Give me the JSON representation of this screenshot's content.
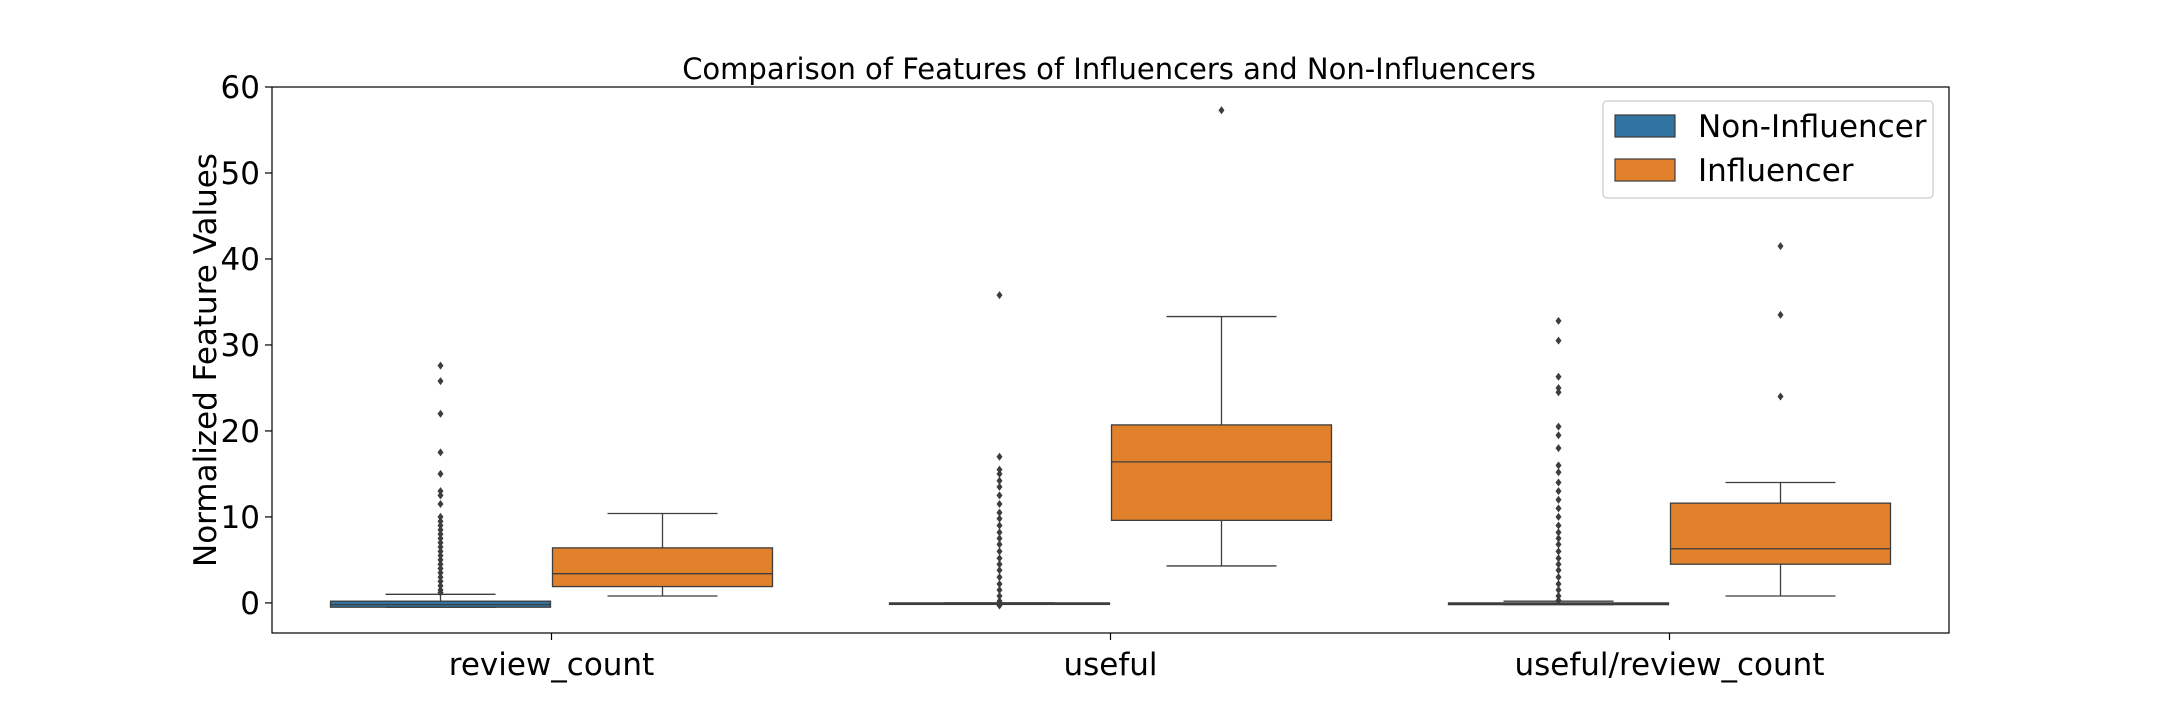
{
  "chart_data": {
    "type": "boxplot",
    "title": "Comparison of Features of Influencers and Non-Influencers",
    "xlabel": "",
    "ylabel": "Normalized Feature Values",
    "ylim": [
      -3.5,
      60
    ],
    "yticks": [
      0,
      10,
      20,
      30,
      40,
      50,
      60
    ],
    "categories": [
      "review_count",
      "useful",
      "useful/review_count"
    ],
    "legend_position": "upper-right",
    "grid": false,
    "series": [
      {
        "name": "Non-Influencer",
        "color": "#3274a1",
        "boxes": [
          {
            "whislo": -0.5,
            "q1": -0.5,
            "med": -0.2,
            "q3": 0.2,
            "whishi": 1.0,
            "fliers": [
              1.2,
              1.5,
              2,
              2.5,
              3,
              3.5,
              4,
              4.5,
              5,
              5.5,
              6,
              6.5,
              7,
              7.5,
              8,
              8.5,
              9,
              9.5,
              10,
              11.5,
              12.5,
              13,
              15,
              17.5,
              22,
              25.8,
              27.6
            ]
          },
          {
            "whislo": -0.1,
            "q1": -0.1,
            "med": -0.05,
            "q3": 0.0,
            "whishi": 0.0,
            "fliers": [
              0.2,
              0.8,
              1.5,
              2.2,
              3,
              3.8,
              4.5,
              5.2,
              6,
              6.8,
              7.5,
              8.2,
              9,
              9.8,
              10.5,
              11.5,
              12.5,
              13.5,
              14.2,
              15,
              15.5,
              17,
              35.8,
              -0.3
            ]
          },
          {
            "whislo": -0.2,
            "q1": -0.2,
            "med": -0.1,
            "q3": 0.0,
            "whishi": 0.2,
            "fliers": [
              0.3,
              0.8,
              1.5,
              2.2,
              3,
              3.8,
              4.5,
              5.2,
              6,
              6.8,
              7.5,
              8.2,
              9,
              10,
              11,
              12,
              13,
              14,
              15.2,
              16,
              18,
              19.5,
              20.5,
              24.5,
              25,
              26.3,
              30.5,
              32.8
            ]
          }
        ]
      },
      {
        "name": "Influencer",
        "color": "#e1812c",
        "boxes": [
          {
            "whislo": 0.8,
            "q1": 1.9,
            "med": 3.4,
            "q3": 6.4,
            "whishi": 10.4,
            "fliers": []
          },
          {
            "whislo": 4.3,
            "q1": 9.6,
            "med": 16.4,
            "q3": 20.7,
            "whishi": 33.3,
            "fliers": [
              57.3
            ]
          },
          {
            "whislo": 0.8,
            "q1": 4.5,
            "med": 6.3,
            "q3": 11.6,
            "whishi": 14.0,
            "fliers": [
              24.0,
              33.5,
              41.5
            ]
          }
        ]
      }
    ]
  }
}
